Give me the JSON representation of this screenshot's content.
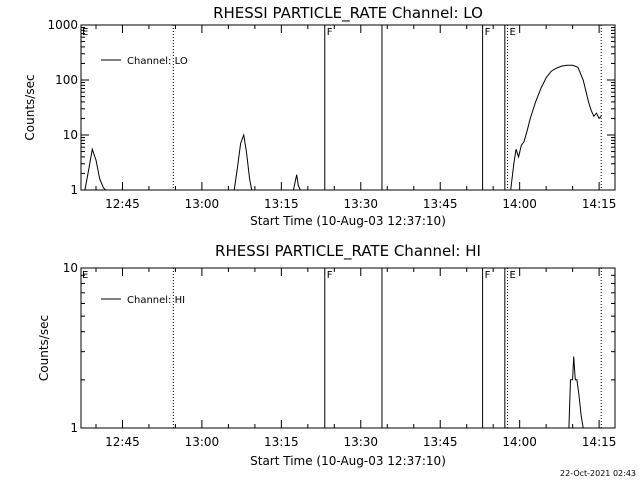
{
  "timestamp": "22-Oct-2021 02:43",
  "chart_data": [
    {
      "type": "line",
      "title": "RHESSI PARTICLE_RATE Channel: LO",
      "xlabel": "Start Time (10-Aug-03 12:37:10)",
      "ylabel": "Counts/sec",
      "yscale": "log",
      "ylim": [
        1,
        1000
      ],
      "yticks": [
        1,
        10,
        100,
        1000
      ],
      "ytick_labels": [
        "1",
        "10",
        "100",
        "1000"
      ],
      "xlim_minutes": [
        37.17,
        138.0
      ],
      "xticks_minutes": [
        45,
        60,
        75,
        90,
        105,
        120,
        135
      ],
      "xtick_labels": [
        "12:45",
        "13:00",
        "13:15",
        "13:30",
        "13:45",
        "14:00",
        "14:15"
      ],
      "legend": {
        "label": "Channel: LO",
        "placement": "top-left"
      },
      "grid": false,
      "events": [
        {
          "minute": 54.6,
          "style": "dotted",
          "label": ""
        },
        {
          "minute": 83.2,
          "style": "solid",
          "label": "F"
        },
        {
          "minute": 94.0,
          "style": "solid",
          "label": ""
        },
        {
          "minute": 113.0,
          "style": "solid",
          "label": "F"
        },
        {
          "minute": 117.2,
          "style": "solid",
          "label": ""
        },
        {
          "minute": 117.7,
          "style": "dotted",
          "label": "E"
        },
        {
          "minute": 135.4,
          "style": "dotted",
          "label": ""
        }
      ],
      "start_label": "E",
      "series": [
        {
          "name": "Channel: LO",
          "x": [
            37.9,
            38.6,
            39.3,
            40.0,
            40.7,
            41.4,
            41.8,
            66.1,
            66.7,
            67.3,
            67.9,
            68.4,
            69.0,
            69.4,
            77.3,
            77.6,
            77.9,
            78.2,
            78.6,
            118.3,
            118.9,
            119.3,
            119.8,
            120.3,
            120.8,
            121.3,
            122.0,
            123.0,
            124.0,
            125.0,
            126.0,
            127.0,
            128.0,
            129.0,
            130.0,
            131.0,
            132.0,
            133.0,
            133.5,
            134.0,
            134.5,
            135.0,
            135.4
          ],
          "y": [
            1,
            2.3,
            5.5,
            3.5,
            1.6,
            1.1,
            1,
            1,
            2.5,
            7,
            10,
            5,
            1.6,
            1,
            1,
            1.4,
            1.9,
            1.2,
            1,
            1,
            3,
            5.5,
            4,
            6.5,
            7.5,
            11,
            20,
            40,
            70,
            110,
            145,
            165,
            180,
            185,
            185,
            170,
            100,
            40,
            28,
            22,
            25,
            20,
            22
          ]
        }
      ]
    },
    {
      "type": "line",
      "title": "RHESSI PARTICLE_RATE Channel: HI",
      "xlabel": "Start Time (10-Aug-03 12:37:10)",
      "ylabel": "Counts/sec",
      "yscale": "log",
      "ylim": [
        1,
        10
      ],
      "yticks": [
        1,
        10
      ],
      "ytick_labels": [
        "1",
        "10"
      ],
      "xlim_minutes": [
        37.17,
        138.0
      ],
      "xticks_minutes": [
        45,
        60,
        75,
        90,
        105,
        120,
        135
      ],
      "xtick_labels": [
        "12:45",
        "13:00",
        "13:15",
        "13:30",
        "13:45",
        "14:00",
        "14:15"
      ],
      "legend": {
        "label": "Channel: HI",
        "placement": "top-left"
      },
      "grid": false,
      "events": [
        {
          "minute": 54.6,
          "style": "dotted",
          "label": ""
        },
        {
          "minute": 83.2,
          "style": "solid",
          "label": "F"
        },
        {
          "minute": 94.0,
          "style": "solid",
          "label": ""
        },
        {
          "minute": 113.0,
          "style": "solid",
          "label": "F"
        },
        {
          "minute": 117.2,
          "style": "solid",
          "label": ""
        },
        {
          "minute": 117.7,
          "style": "dotted",
          "label": "E"
        },
        {
          "minute": 135.4,
          "style": "dotted",
          "label": ""
        }
      ],
      "start_label": "E",
      "series": [
        {
          "name": "Channel: HI",
          "x": [
            129.3,
            129.6,
            130.0,
            130.2,
            130.5,
            130.8,
            131.2,
            131.6,
            132.0,
            132.4
          ],
          "y": [
            1,
            2,
            2,
            2.8,
            2,
            2,
            1.6,
            1.2,
            1,
            1
          ]
        }
      ]
    }
  ]
}
